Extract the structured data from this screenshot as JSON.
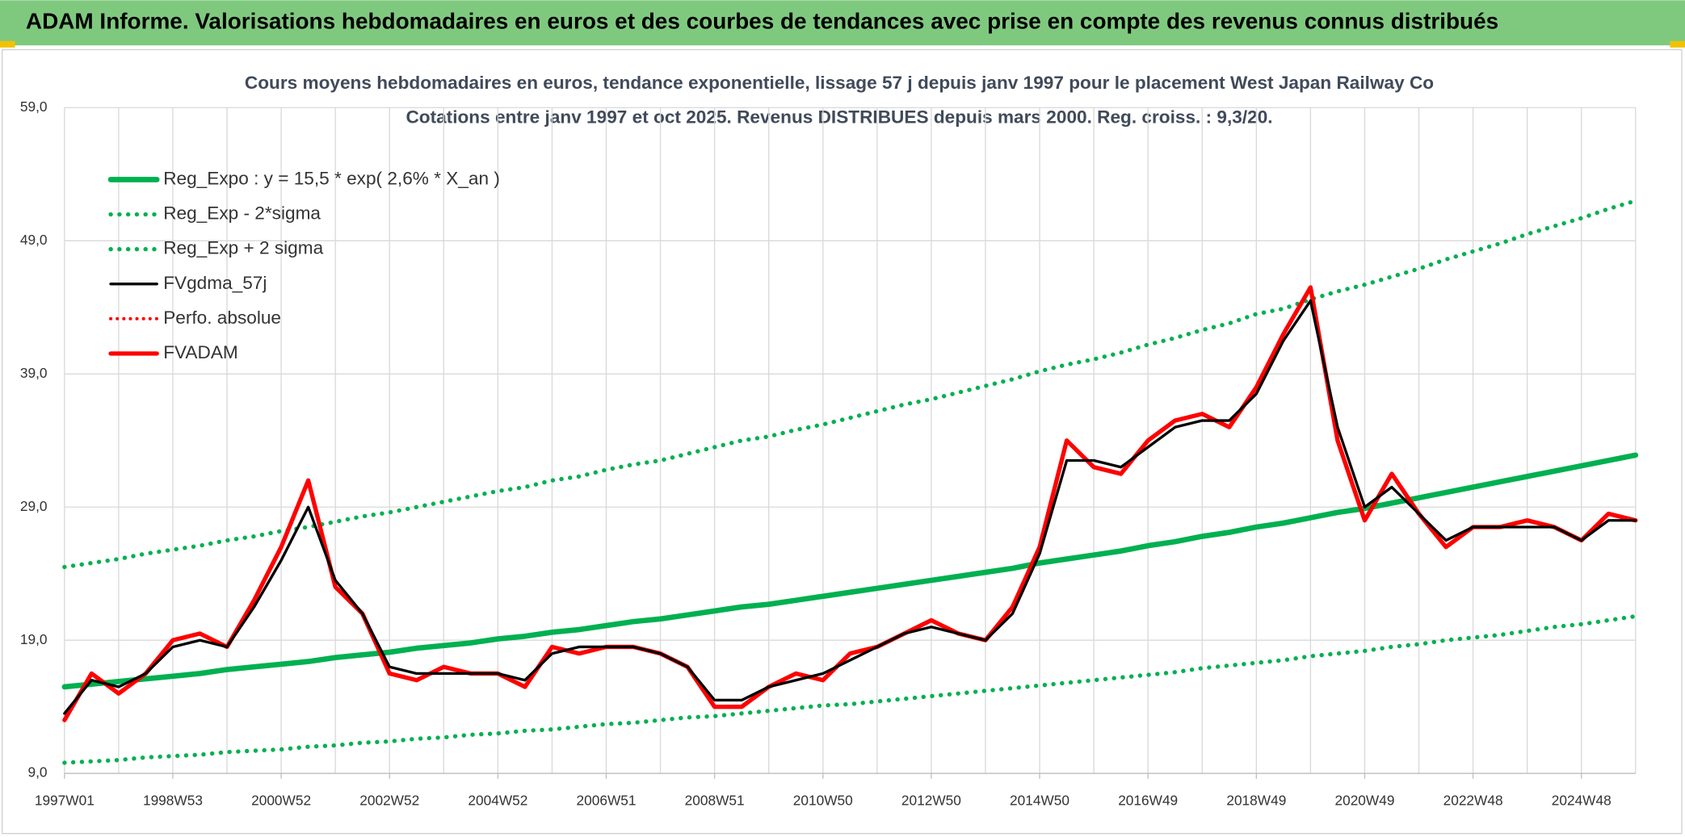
{
  "chart_data": {
    "type": "line",
    "header": "ADAM Informe. Valorisations hebdomadaires en euros et des courbes de tendances avec prise en compte des revenus connus distribués",
    "title": "Cours moyens hebdomadaires en euros, tendance exponentielle, lissage 57 j depuis janv 1997 pour le placement West Japan Railway Co",
    "subtitle": "Cotations entre janv 1997 et oct 2025. Revenus DISTRIBUES depuis mars 2000. Reg. croiss. : 9,3/20.",
    "categories": [
      "1997W01",
      null,
      null,
      null,
      "1998W53",
      null,
      null,
      null,
      "2000W52",
      null,
      null,
      null,
      "2002W52",
      null,
      null,
      null,
      "2004W52",
      null,
      null,
      null,
      "2006W51",
      null,
      null,
      null,
      "2008W51",
      null,
      null,
      null,
      "2010W50",
      null,
      null,
      null,
      "2012W50",
      null,
      null,
      null,
      "2014W50",
      null,
      null,
      null,
      "2016W49",
      null,
      null,
      null,
      "2018W49",
      null,
      null,
      null,
      "2020W49",
      null,
      null,
      null,
      "2022W48",
      null,
      null,
      null,
      "2024W48",
      null,
      null
    ],
    "ylim": [
      9,
      59
    ],
    "yticks": [
      {
        "value": 9,
        "label": "9,0"
      },
      {
        "value": 19,
        "label": "19,0"
      },
      {
        "value": 29,
        "label": "29,0"
      },
      {
        "value": 39,
        "label": "39,0"
      },
      {
        "value": 49,
        "label": "49,0"
      },
      {
        "value": 59,
        "label": "59,0"
      }
    ],
    "grid": true,
    "legend": "upper left",
    "series": [
      {
        "name": "Reg_Expo : y = 15,5 * exp( 2,6% *  X_an )",
        "color": "#00b050",
        "style": "solid",
        "line_width": 5,
        "values": [
          15.5,
          15.7,
          15.9,
          16.1,
          16.3,
          16.5,
          16.8,
          17.0,
          17.2,
          17.4,
          17.7,
          17.9,
          18.1,
          18.4,
          18.6,
          18.8,
          19.1,
          19.3,
          19.6,
          19.8,
          20.1,
          20.4,
          20.6,
          20.9,
          21.2,
          21.5,
          21.7,
          22.0,
          22.3,
          22.6,
          22.9,
          23.2,
          23.5,
          23.8,
          24.1,
          24.4,
          24.8,
          25.1,
          25.4,
          25.7,
          26.1,
          26.4,
          26.8,
          27.1,
          27.5,
          27.8,
          28.2,
          28.6,
          28.9,
          29.3,
          29.7,
          30.1,
          30.5,
          30.9,
          31.3,
          31.7,
          32.1,
          32.5,
          32.9
        ]
      },
      {
        "name": "Reg_Exp - 2*sigma",
        "color": "#00b050",
        "style": "dotted",
        "line_width": 4,
        "values": [
          9.8,
          9.9,
          10.0,
          10.2,
          10.3,
          10.4,
          10.6,
          10.7,
          10.8,
          11.0,
          11.1,
          11.3,
          11.4,
          11.6,
          11.7,
          11.9,
          12.0,
          12.2,
          12.3,
          12.5,
          12.7,
          12.8,
          13.0,
          13.2,
          13.3,
          13.5,
          13.7,
          13.9,
          14.1,
          14.2,
          14.4,
          14.6,
          14.8,
          15.0,
          15.2,
          15.4,
          15.6,
          15.8,
          16.0,
          16.2,
          16.4,
          16.6,
          16.9,
          17.1,
          17.3,
          17.5,
          17.8,
          18.0,
          18.2,
          18.5,
          18.7,
          19.0,
          19.2,
          19.4,
          19.7,
          20.0,
          20.2,
          20.5,
          20.8
        ]
      },
      {
        "name": "Reg_Exp + 2 sigma",
        "color": "#00b050",
        "style": "dotted",
        "line_width": 4,
        "values": [
          24.5,
          24.8,
          25.1,
          25.5,
          25.8,
          26.1,
          26.5,
          26.8,
          27.2,
          27.5,
          27.9,
          28.3,
          28.6,
          29.0,
          29.4,
          29.8,
          30.2,
          30.5,
          31.0,
          31.3,
          31.8,
          32.2,
          32.5,
          33.0,
          33.5,
          34.0,
          34.3,
          34.8,
          35.2,
          35.7,
          36.2,
          36.7,
          37.1,
          37.6,
          38.1,
          38.6,
          39.2,
          39.7,
          40.1,
          40.6,
          41.2,
          41.7,
          42.3,
          42.8,
          43.5,
          43.9,
          44.6,
          45.2,
          45.7,
          46.3,
          46.9,
          47.6,
          48.2,
          48.8,
          49.5,
          50.1,
          50.7,
          51.4,
          52.0
        ]
      },
      {
        "name": "FVgdma_57j",
        "color": "#000000",
        "style": "solid",
        "line_width": 2.5,
        "values": [
          13.5,
          16,
          15.5,
          16.5,
          18.5,
          19,
          18.5,
          21.5,
          25,
          29,
          23.5,
          21,
          17,
          16.5,
          16.5,
          16.5,
          16.5,
          16,
          18,
          18.5,
          18.5,
          18.5,
          18,
          17,
          14.5,
          14.5,
          15.5,
          16,
          16.5,
          17.5,
          18.5,
          19.5,
          20,
          19.5,
          19,
          21,
          25.5,
          32.5,
          32.5,
          32,
          33.5,
          35,
          35.5,
          35.5,
          37.5,
          41.5,
          44.5,
          35,
          29,
          30.5,
          28.5,
          26.5,
          27.5,
          27.5,
          27.5,
          27.5,
          26.5,
          28,
          28
        ]
      },
      {
        "name": "Perfo. absolue",
        "color": "#ff0000",
        "style": "dotted",
        "line_width": 3,
        "values": [
          null,
          null,
          null,
          null,
          null,
          null,
          null,
          null,
          null,
          null,
          null,
          null,
          null,
          null,
          null,
          null,
          null,
          null,
          null,
          null,
          null,
          null,
          null,
          null,
          null,
          null,
          null,
          null,
          null,
          null,
          null,
          null,
          null,
          null,
          null,
          null,
          null,
          null,
          null,
          null,
          null,
          null,
          null,
          null,
          null,
          null,
          null,
          null,
          null,
          null,
          null,
          null,
          null,
          null,
          null,
          null,
          null,
          null,
          null
        ]
      },
      {
        "name": "FVADAM",
        "color": "#ff0000",
        "style": "solid",
        "line_width": 4,
        "values": [
          13,
          16.5,
          15,
          16.5,
          19,
          19.5,
          18.5,
          22,
          26,
          31,
          23,
          21,
          16.5,
          16,
          17,
          16.5,
          16.5,
          15.5,
          18.5,
          18,
          18.5,
          18.5,
          18,
          17,
          14,
          14,
          15.5,
          16.5,
          16,
          18,
          18.5,
          19.5,
          20.5,
          19.5,
          19,
          21.5,
          26,
          34,
          32,
          31.5,
          34,
          35.5,
          36,
          35,
          38,
          42,
          45.5,
          34,
          28,
          31.5,
          28.5,
          26,
          27.5,
          27.5,
          28,
          27.5,
          26.5,
          28.5,
          28
        ]
      }
    ]
  }
}
